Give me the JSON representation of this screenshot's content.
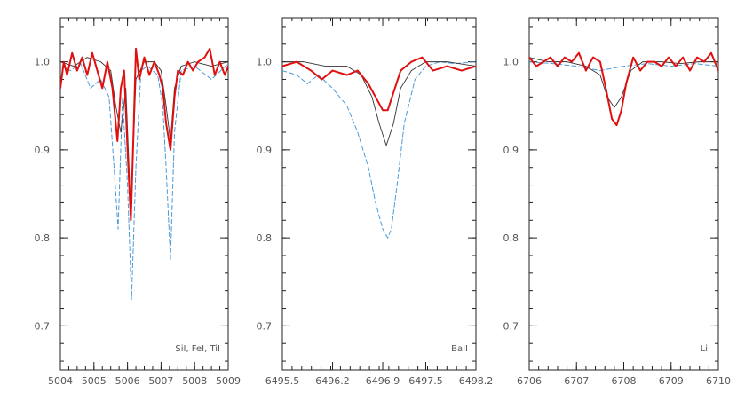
{
  "chart_data": [
    {
      "type": "line",
      "label": "SiI, FeI, TiI",
      "xlim": [
        5004,
        5009
      ],
      "ylim": [
        0.65,
        1.05
      ],
      "xticks": [
        5004,
        5005,
        5006,
        5007,
        5008,
        5009
      ],
      "yticks": [
        0.7,
        0.8,
        0.9,
        1.0
      ],
      "series": [
        {
          "style": "dashed",
          "color": "#4a9bd8",
          "x": [
            5004,
            5004.3,
            5004.6,
            5004.9,
            5005.2,
            5005.45,
            5005.6,
            5005.72,
            5005.85,
            5006.0,
            5006.12,
            5006.25,
            5006.4,
            5006.6,
            5006.9,
            5007.05,
            5007.15,
            5007.28,
            5007.4,
            5007.6,
            5008.0,
            5008.5,
            5009
          ],
          "y": [
            0.995,
            0.99,
            0.998,
            0.97,
            0.98,
            0.96,
            0.88,
            0.81,
            0.96,
            0.86,
            0.73,
            0.88,
            0.99,
            0.995,
            0.985,
            0.95,
            0.88,
            0.775,
            0.92,
            0.99,
            0.995,
            0.98,
            0.998
          ]
        },
        {
          "style": "thin",
          "color": "#333333",
          "x": [
            5004,
            5004.4,
            5004.8,
            5005.2,
            5005.5,
            5005.65,
            5005.8,
            5005.95,
            5006.1,
            5006.25,
            5006.5,
            5006.8,
            5007.0,
            5007.15,
            5007.28,
            5007.4,
            5007.6,
            5008.0,
            5008.5,
            5009
          ],
          "y": [
            1.0,
            0.995,
            1.005,
            1.0,
            0.99,
            0.95,
            0.92,
            0.97,
            0.83,
            0.98,
            1.0,
            1.0,
            0.99,
            0.95,
            0.91,
            0.97,
            0.995,
            1.0,
            0.995,
            1.0
          ]
        },
        {
          "style": "thick",
          "color": "#e01010",
          "x": [
            5004,
            5004.1,
            5004.2,
            5004.35,
            5004.5,
            5004.65,
            5004.8,
            5004.95,
            5005.1,
            5005.25,
            5005.4,
            5005.55,
            5005.7,
            5005.8,
            5005.9,
            5006.0,
            5006.1,
            5006.18,
            5006.25,
            5006.35,
            5006.5,
            5006.65,
            5006.8,
            5006.95,
            5007.05,
            5007.15,
            5007.28,
            5007.4,
            5007.5,
            5007.65,
            5007.8,
            5007.95,
            5008.1,
            5008.3,
            5008.45,
            5008.6,
            5008.75,
            5008.9,
            5009
          ],
          "y": [
            0.97,
            1.0,
            0.985,
            1.01,
            0.99,
            1.005,
            0.985,
            1.01,
            0.99,
            0.97,
            1.0,
            0.97,
            0.91,
            0.97,
            0.99,
            0.9,
            0.82,
            0.92,
            1.015,
            0.98,
            1.005,
            0.985,
            1.0,
            0.985,
            0.97,
            0.93,
            0.9,
            0.96,
            0.99,
            0.985,
            1.0,
            0.99,
            1.0,
            1.005,
            1.015,
            0.985,
            1.0,
            0.985,
            0.995
          ]
        }
      ]
    },
    {
      "type": "line",
      "label": "BaII",
      "xlim": [
        6495.5,
        6498.2
      ],
      "ylim": [
        0.65,
        1.05
      ],
      "xticks": [
        6495.5,
        6496.2,
        6496.9,
        6497.5,
        6498.2
      ],
      "yticks": [
        0.7,
        0.8,
        0.9,
        1.0
      ],
      "series": [
        {
          "style": "dashed",
          "color": "#4a9bd8",
          "x": [
            6495.5,
            6495.7,
            6495.85,
            6496.0,
            6496.2,
            6496.4,
            6496.55,
            6496.7,
            6496.8,
            6496.9,
            6496.97,
            6497.02,
            6497.1,
            6497.2,
            6497.35,
            6497.5,
            6497.7,
            6497.9,
            6498.2
          ],
          "y": [
            0.99,
            0.985,
            0.975,
            0.985,
            0.97,
            0.95,
            0.92,
            0.88,
            0.84,
            0.81,
            0.8,
            0.81,
            0.86,
            0.93,
            0.98,
            0.995,
            1.0,
            0.998,
            1.0
          ]
        },
        {
          "style": "thin",
          "color": "#333333",
          "x": [
            6495.5,
            6495.8,
            6496.1,
            6496.4,
            6496.6,
            6496.75,
            6496.85,
            6496.95,
            6497.05,
            6497.15,
            6497.3,
            6497.5,
            6497.8,
            6498.2
          ],
          "y": [
            1.0,
            1.0,
            0.995,
            0.995,
            0.985,
            0.96,
            0.93,
            0.905,
            0.93,
            0.97,
            0.99,
            1.0,
            1.0,
            0.995
          ]
        },
        {
          "style": "thick",
          "color": "#e01010",
          "x": [
            6495.5,
            6495.7,
            6495.9,
            6496.05,
            6496.2,
            6496.4,
            6496.55,
            6496.7,
            6496.8,
            6496.9,
            6496.97,
            6497.05,
            6497.15,
            6497.3,
            6497.45,
            6497.6,
            6497.8,
            6498.0,
            6498.2
          ],
          "y": [
            0.995,
            1.0,
            0.99,
            0.98,
            0.99,
            0.985,
            0.99,
            0.975,
            0.96,
            0.945,
            0.945,
            0.965,
            0.99,
            1.0,
            1.005,
            0.99,
            0.995,
            0.99,
            0.995
          ]
        }
      ]
    },
    {
      "type": "line",
      "label": "LiI",
      "xlim": [
        6706,
        6710
      ],
      "ylim": [
        0.65,
        1.05
      ],
      "xticks": [
        6706,
        6707,
        6708,
        6709,
        6710
      ],
      "yticks": [
        0.7,
        0.8,
        0.9,
        1.0
      ],
      "series": [
        {
          "style": "dashed",
          "color": "#4a9bd8",
          "x": [
            6706,
            6706.5,
            6707.0,
            6707.5,
            6708.0,
            6708.5,
            6709.0,
            6709.5,
            6710
          ],
          "y": [
            1.0,
            0.998,
            0.995,
            0.99,
            0.995,
            0.998,
            0.995,
            0.998,
            0.995
          ]
        },
        {
          "style": "thin",
          "color": "#333333",
          "x": [
            6706,
            6706.4,
            6706.8,
            6707.2,
            6707.5,
            6707.65,
            6707.8,
            6707.95,
            6708.15,
            6708.4,
            6708.8,
            6709.2,
            6709.6,
            6710
          ],
          "y": [
            1.005,
            1.0,
            1.0,
            0.995,
            0.985,
            0.96,
            0.948,
            0.96,
            0.99,
            1.0,
            1.0,
            0.998,
            1.0,
            1.0
          ]
        },
        {
          "style": "thick",
          "color": "#e01010",
          "x": [
            6706,
            6706.15,
            6706.3,
            6706.45,
            6706.6,
            6706.75,
            6706.9,
            6707.05,
            6707.2,
            6707.35,
            6707.5,
            6707.62,
            6707.75,
            6707.85,
            6707.95,
            6708.05,
            6708.2,
            6708.35,
            6708.5,
            6708.65,
            6708.8,
            6708.95,
            6709.1,
            6709.25,
            6709.4,
            6709.55,
            6709.7,
            6709.85,
            6710
          ],
          "y": [
            1.005,
            0.995,
            1.0,
            1.005,
            0.995,
            1.005,
            1.0,
            1.01,
            0.99,
            1.005,
            1.0,
            0.97,
            0.935,
            0.928,
            0.945,
            0.975,
            1.005,
            0.99,
            1.0,
            1.0,
            0.995,
            1.005,
            0.995,
            1.005,
            0.99,
            1.005,
            1.0,
            1.01,
            0.99
          ]
        }
      ]
    }
  ]
}
